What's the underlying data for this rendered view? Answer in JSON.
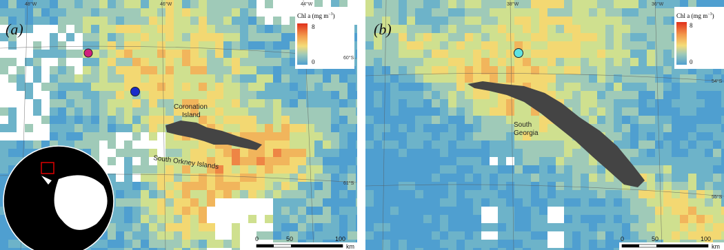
{
  "panels": [
    {
      "label": "(a)",
      "legend": {
        "title": "Chl a (mg m",
        "exponent": "−3",
        "close": ")",
        "max": 8,
        "min": 0
      },
      "lon_labels": [
        "48°W",
        "46°W",
        "44°W"
      ],
      "lat_labels": [
        "60°S",
        "61°S"
      ],
      "place_labels": [
        "Coronation",
        "Island",
        "South Orkney Islands"
      ],
      "scale": {
        "ticks": [
          0,
          50,
          100
        ],
        "unit": "km"
      }
    },
    {
      "label": "(b)",
      "legend": {
        "title": "Chl a (mg m",
        "exponent": "−3",
        "close": ")",
        "max": 8,
        "min": 0
      },
      "lon_labels": [
        "38°W",
        "36°W"
      ],
      "lat_labels": [
        "54°S",
        "55°S"
      ],
      "place_labels": [
        "South",
        "Georgia"
      ],
      "scale": {
        "ticks": [
          0,
          50,
          100
        ],
        "unit": "km"
      }
    }
  ]
}
